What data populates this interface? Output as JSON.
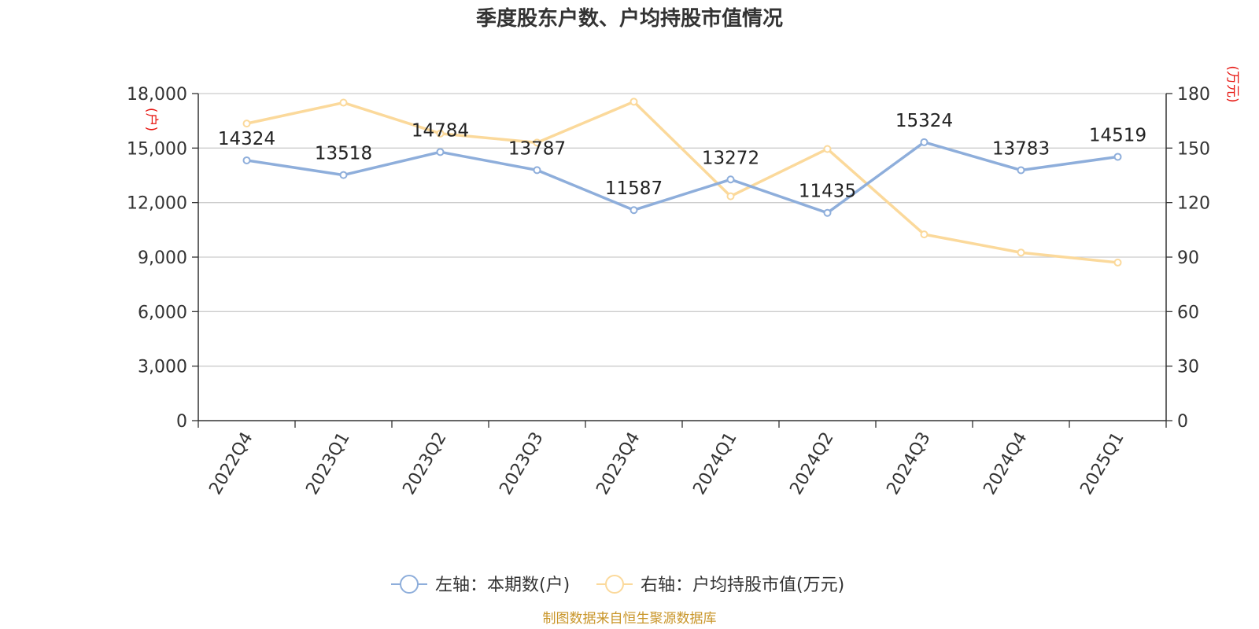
{
  "chart_data": {
    "type": "line",
    "title": "季度股东户数、户均持股市值情况",
    "categories": [
      "2022Q4",
      "2023Q1",
      "2023Q2",
      "2023Q3",
      "2023Q4",
      "2024Q1",
      "2024Q2",
      "2024Q3",
      "2024Q4",
      "2025Q1"
    ],
    "left_axis": {
      "unit": "(户)",
      "ylim": [
        0,
        18000
      ],
      "ticks": [
        0,
        3000,
        6000,
        9000,
        12000,
        15000,
        18000
      ],
      "tick_labels": [
        "0",
        "3,000",
        "6,000",
        "9,000",
        "12,000",
        "15,000",
        "18,000"
      ]
    },
    "right_axis": {
      "unit": "(万元)",
      "ylim": [
        0,
        180
      ],
      "ticks": [
        0,
        30,
        60,
        90,
        120,
        150,
        180
      ],
      "tick_labels": [
        "0",
        "30",
        "60",
        "90",
        "120",
        "150",
        "180"
      ]
    },
    "series": [
      {
        "name": "左轴：本期数(户)",
        "axis": "left",
        "color": "#8eaedb",
        "values": [
          14324,
          13518,
          14784,
          13787,
          11587,
          13272,
          11435,
          15324,
          13783,
          14519
        ],
        "labels": [
          "14324",
          "13518",
          "14784",
          "13787",
          "11587",
          "13272",
          "11435",
          "15324",
          "13783",
          "14519"
        ]
      },
      {
        "name": "右轴：户均持股市值(万元)",
        "axis": "right",
        "color": "#fbd99b",
        "values": [
          163.5,
          175,
          158,
          153,
          175.5,
          123.5,
          149.5,
          102.5,
          92.5,
          87
        ]
      }
    ],
    "grid": true,
    "legend_position": "bottom",
    "source": "制图数据来自恒生聚源数据库"
  }
}
